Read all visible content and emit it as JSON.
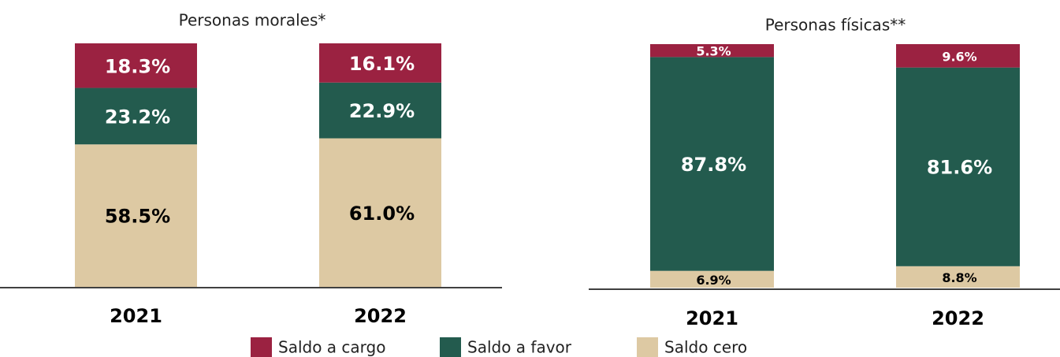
{
  "chart_data": [
    {
      "type": "stacked_bar",
      "title": "Personas morales*",
      "categories": [
        "2021",
        "2022"
      ],
      "ylim": [
        0,
        100
      ],
      "series": [
        {
          "name": "Saldo a cargo",
          "color": "#9b2241",
          "values": [
            18.3,
            16.1
          ],
          "value_labels": [
            "18.3%",
            "16.1%"
          ]
        },
        {
          "name": "Saldo a favor",
          "color": "#235b4e",
          "values": [
            23.2,
            22.9
          ],
          "value_labels": [
            "23.2%",
            "22.9%"
          ]
        },
        {
          "name": "Saldo cero",
          "color": "#ddc9a3",
          "values": [
            58.5,
            61.0
          ],
          "value_labels": [
            "58.5%",
            "61.0%"
          ]
        }
      ]
    },
    {
      "type": "stacked_bar",
      "title": "Personas físicas**",
      "categories": [
        "2021",
        "2022"
      ],
      "ylim": [
        0,
        100
      ],
      "series": [
        {
          "name": "Saldo a cargo",
          "color": "#9b2241",
          "values": [
            5.3,
            9.6
          ],
          "value_labels": [
            "5.3%",
            "9.6%"
          ]
        },
        {
          "name": "Saldo a favor",
          "color": "#235b4e",
          "values": [
            87.8,
            81.6
          ],
          "value_labels": [
            "87.8%",
            "81.6%"
          ]
        },
        {
          "name": "Saldo cero",
          "color": "#ddc9a3",
          "values": [
            6.9,
            8.8
          ],
          "value_labels": [
            "6.9%",
            "8.8%"
          ]
        }
      ]
    }
  ]
}
